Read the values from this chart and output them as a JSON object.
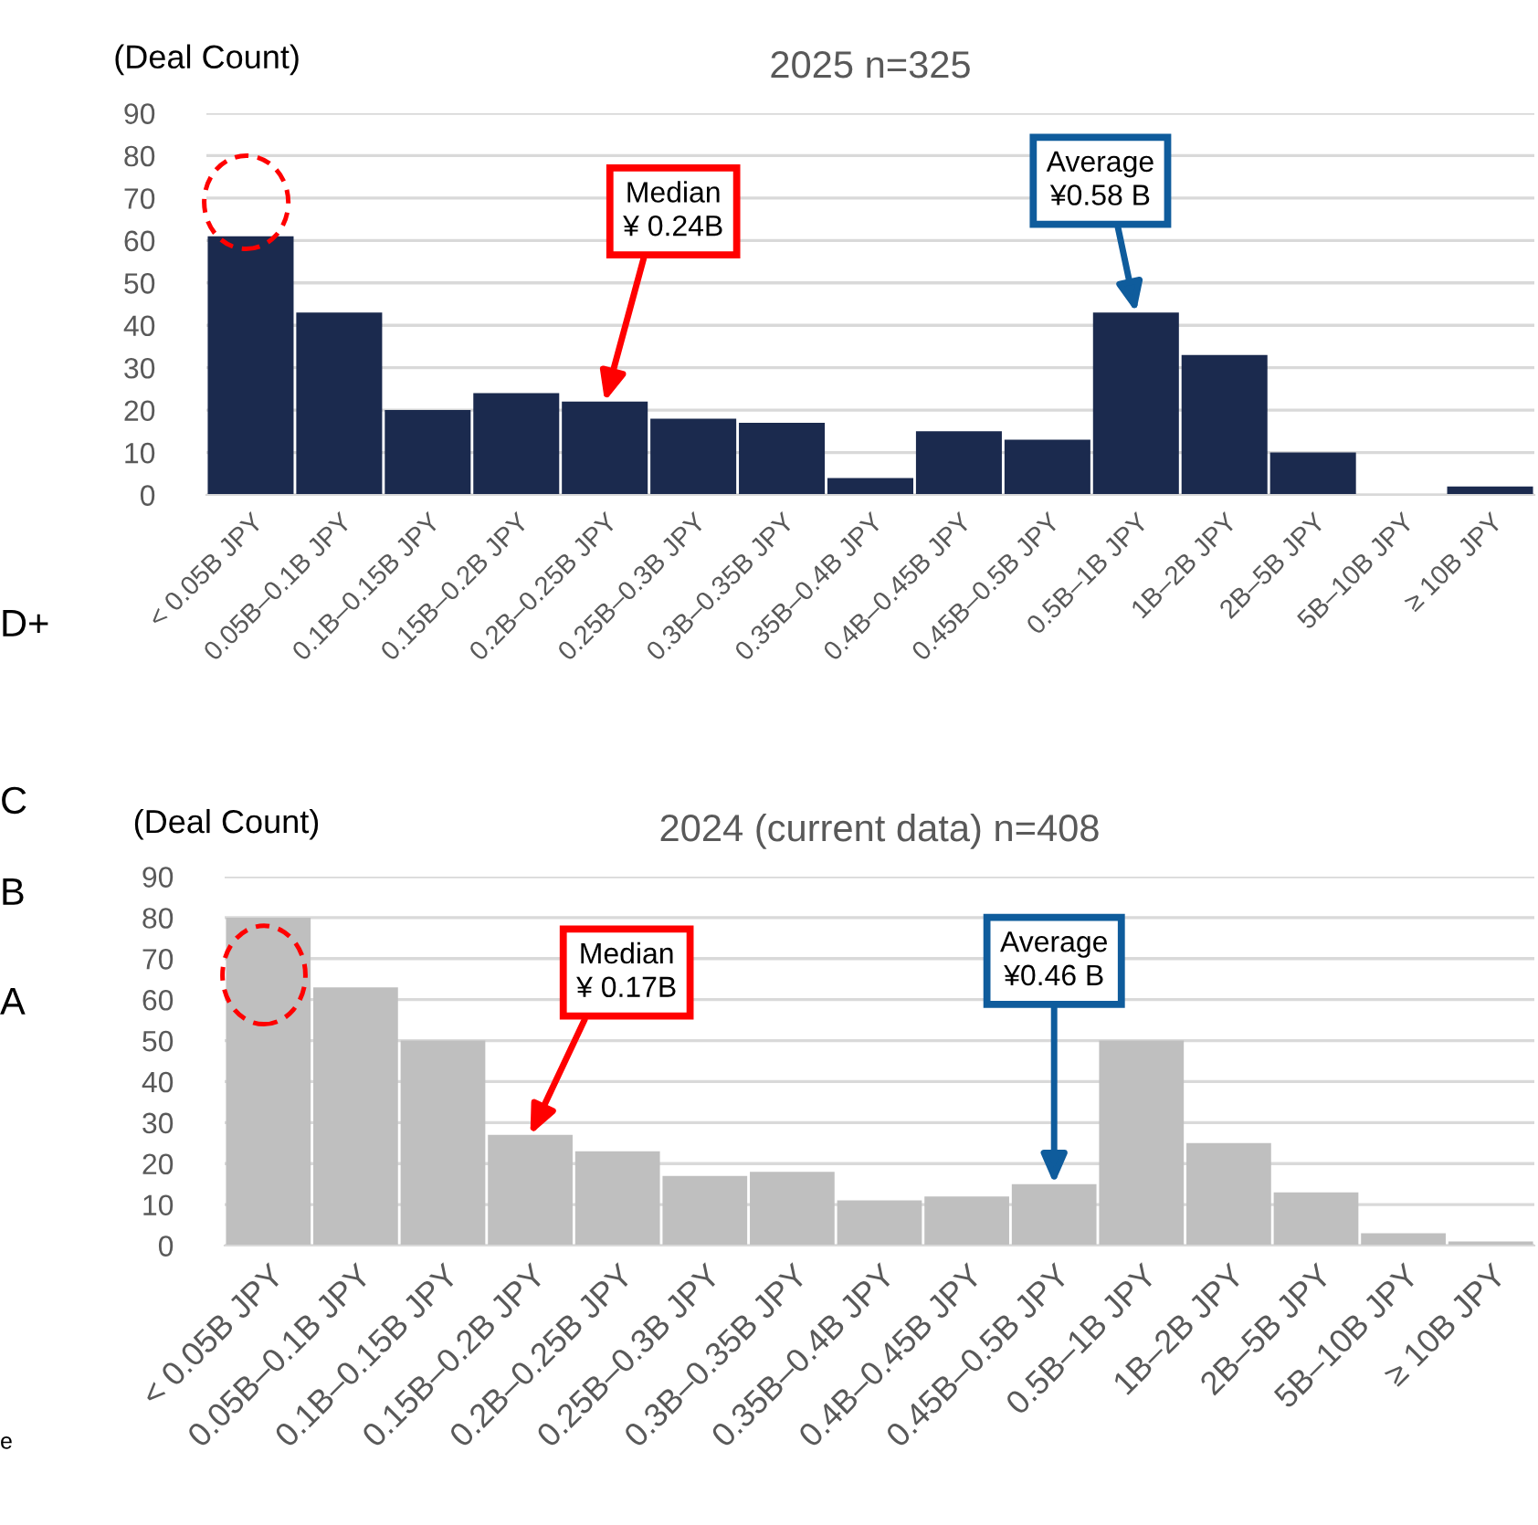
{
  "chart_data": [
    {
      "type": "bar",
      "title": "2025 n=325",
      "ylabel": "(Deal Count)",
      "categories": [
        "< 0.05B JPY",
        "0.05B–0.1B JPY",
        "0.1B–0.15B JPY",
        "0.15B–0.2B JPY",
        "0.2B–0.25B JPY",
        "0.25B–0.3B JPY",
        "0.3B–0.35B JPY",
        "0.35B–0.4B JPY",
        "0.4B–0.45B JPY",
        "0.45B–0.5B JPY",
        "0.5B–1B JPY",
        "1B–2B JPY",
        "2B–5B JPY",
        "5B–10B JPY",
        "≥ 10B JPY"
      ],
      "values": [
        61,
        43,
        20,
        24,
        22,
        18,
        17,
        4,
        15,
        13,
        43,
        33,
        10,
        0,
        2
      ],
      "color": "#1b2a4e",
      "ylim": [
        0,
        90
      ],
      "yticks": [
        0,
        10,
        20,
        30,
        40,
        50,
        60,
        70,
        80,
        90
      ],
      "grid": "y",
      "annotations": [
        {
          "text": "Median\n¥ 0.24B",
          "x": "0.2B–0.25B JPY",
          "y": 22
        },
        {
          "text": "Average\n¥0.58 B",
          "x": "0.5B–1B JPY",
          "y": 43
        },
        "D+"
      ]
    },
    {
      "type": "bar",
      "title": "2024 (current data) n=408",
      "ylabel": "(Deal Count)",
      "categories": [
        "< 0.05B JPY",
        "0.05B–0.1B JPY",
        "0.1B–0.15B JPY",
        "0.15B–0.2B JPY",
        "0.2B–0.25B JPY",
        "0.25B–0.3B JPY",
        "0.3B–0.35B JPY",
        "0.35B–0.4B JPY",
        "0.4B–0.45B JPY",
        "0.45B–0.5B JPY",
        "0.5B–1B JPY",
        "1B–2B JPY",
        "2B–5B JPY",
        "5B–10B JPY",
        "≥ 10B JPY"
      ],
      "values": [
        80,
        63,
        50,
        27,
        23,
        17,
        18,
        11,
        12,
        15,
        50,
        25,
        13,
        3,
        1
      ],
      "color": "#bfbfbf",
      "ylim": [
        0,
        90
      ],
      "yticks": [
        0,
        10,
        20,
        30,
        40,
        50,
        60,
        70,
        80,
        90
      ],
      "grid": "y",
      "annotations": [
        {
          "text": "Median\n¥ 0.17B",
          "x": "0.15B–0.2B JPY",
          "y": 27
        },
        {
          "text": "Average\n¥0.46 B",
          "x": "0.45B–0.5B JPY",
          "y": 15
        },
        "C",
        "B",
        "A",
        "e"
      ]
    }
  ]
}
